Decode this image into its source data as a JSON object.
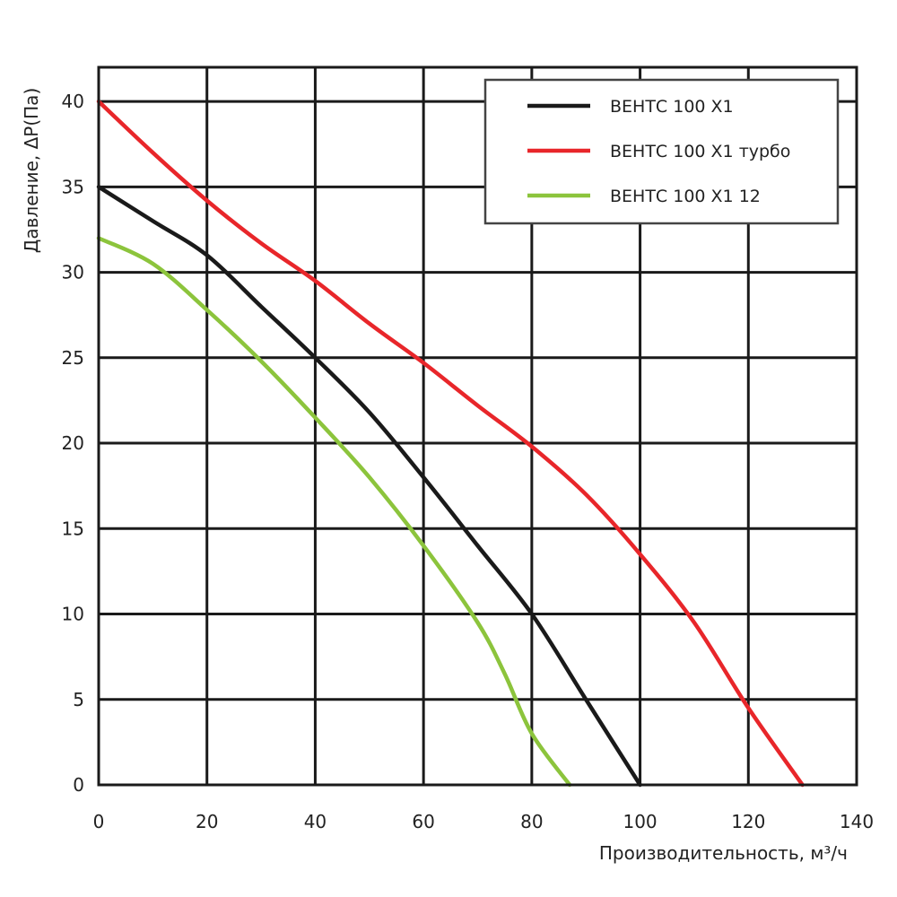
{
  "chart_data": {
    "type": "line",
    "title": "",
    "xlabel": "Производительность, м³/ч",
    "ylabel": "Давление, ΔP(Па)",
    "xlim": [
      0,
      140
    ],
    "ylim": [
      0,
      42
    ],
    "x_ticks": [
      "0",
      "20",
      "40",
      "60",
      "80",
      "100",
      "120",
      "140"
    ],
    "y_ticks": [
      "0",
      "5",
      "10",
      "15",
      "20",
      "25",
      "30",
      "35",
      "40"
    ],
    "grid": true,
    "legend_position": "top-right",
    "series": [
      {
        "name": "ВЕНТС 100 Х1",
        "color": "#1a1a1a",
        "points": [
          [
            0,
            35
          ],
          [
            10,
            33
          ],
          [
            20,
            31
          ],
          [
            30,
            28
          ],
          [
            40,
            25
          ],
          [
            50,
            21.8
          ],
          [
            60,
            18
          ],
          [
            70,
            14
          ],
          [
            80,
            10
          ],
          [
            90,
            5
          ],
          [
            100,
            0
          ]
        ]
      },
      {
        "name": "ВЕНТС 100 Х1 турбо",
        "color": "#e8262a",
        "points": [
          [
            0,
            40
          ],
          [
            10,
            37
          ],
          [
            20,
            34.2
          ],
          [
            30,
            31.7
          ],
          [
            40,
            29.5
          ],
          [
            50,
            27
          ],
          [
            60,
            24.7
          ],
          [
            70,
            22.2
          ],
          [
            80,
            19.8
          ],
          [
            90,
            17
          ],
          [
            100,
            13.5
          ],
          [
            110,
            9.5
          ],
          [
            120,
            4.5
          ],
          [
            130,
            0
          ]
        ]
      },
      {
        "name": "ВЕНТС 100 Х1 12",
        "color": "#8cc43c",
        "points": [
          [
            0,
            32
          ],
          [
            10,
            30.5
          ],
          [
            20,
            27.8
          ],
          [
            30,
            24.8
          ],
          [
            40,
            21.5
          ],
          [
            50,
            18
          ],
          [
            60,
            14
          ],
          [
            70,
            9.5
          ],
          [
            75,
            6.5
          ],
          [
            80,
            3
          ],
          [
            87,
            0
          ]
        ]
      }
    ]
  }
}
